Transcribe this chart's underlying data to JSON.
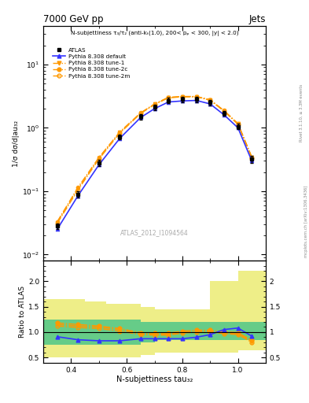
{
  "title_left": "7000 GeV pp",
  "title_right": "Jets",
  "annotation": "N-subjettiness τ₃/τ₂ (anti-kₜ(1.0), 200< pₚ < 300, |y| < 2.0)",
  "watermark": "ATLAS_2012_I1094564",
  "right_label": "mcplots.cern.ch [arXiv:1306.3436]",
  "right_label2": "Rivet 3.1.10, ≥ 3.3M events",
  "ylabel_main": "1/σ dσ/d|au₃₂",
  "ylabel_ratio": "Ratio to ATLAS",
  "xlabel": "N-subjettiness tau₃₂",
  "xlim": [
    0.3,
    1.1
  ],
  "ylim_main": [
    0.008,
    40
  ],
  "ylim_ratio": [
    0.4,
    2.4
  ],
  "x_centers": [
    0.35,
    0.425,
    0.5,
    0.575,
    0.65,
    0.7,
    0.75,
    0.8,
    0.85,
    0.9,
    0.95,
    1.0,
    1.05
  ],
  "atlas_y": [
    0.028,
    0.09,
    0.28,
    0.72,
    1.5,
    2.1,
    2.7,
    2.8,
    2.8,
    2.5,
    1.7,
    1.05,
    0.32
  ],
  "atlas_yerr_lo": [
    0.003,
    0.01,
    0.03,
    0.07,
    0.15,
    0.2,
    0.25,
    0.25,
    0.25,
    0.23,
    0.16,
    0.1,
    0.04
  ],
  "atlas_yerr_hi": [
    0.003,
    0.01,
    0.03,
    0.07,
    0.15,
    0.2,
    0.25,
    0.25,
    0.25,
    0.23,
    0.16,
    0.1,
    0.04
  ],
  "pythia_default_y": [
    0.025,
    0.085,
    0.26,
    0.68,
    1.45,
    2.0,
    2.55,
    2.65,
    2.7,
    2.38,
    1.6,
    1.0,
    0.3
  ],
  "pythia_tune1_y": [
    0.032,
    0.11,
    0.33,
    0.84,
    1.7,
    2.35,
    3.0,
    3.1,
    3.1,
    2.75,
    1.85,
    1.15,
    0.34
  ],
  "pythia_tune2c_y": [
    0.033,
    0.115,
    0.34,
    0.86,
    1.72,
    2.38,
    3.02,
    3.12,
    3.12,
    2.77,
    1.87,
    1.17,
    0.345
  ],
  "pythia_tune2m_y": [
    0.031,
    0.105,
    0.32,
    0.82,
    1.68,
    2.32,
    2.97,
    3.07,
    3.07,
    2.72,
    1.83,
    1.13,
    0.335
  ],
  "ratio_default": [
    0.91,
    0.85,
    0.83,
    0.83,
    0.87,
    0.87,
    0.87,
    0.87,
    0.9,
    0.95,
    1.05,
    1.08,
    0.92
  ],
  "ratio_tune1": [
    1.15,
    1.12,
    1.1,
    1.05,
    0.97,
    0.96,
    0.96,
    1.0,
    1.02,
    1.02,
    0.99,
    0.97,
    0.82
  ],
  "ratio_tune2c": [
    1.18,
    1.15,
    1.12,
    1.07,
    0.99,
    0.98,
    0.98,
    1.02,
    1.04,
    1.04,
    1.01,
    0.99,
    0.84
  ],
  "ratio_tune2m": [
    1.12,
    1.09,
    1.07,
    1.02,
    0.95,
    0.94,
    0.94,
    0.98,
    1.0,
    1.0,
    0.97,
    0.95,
    0.8
  ],
  "band_x_lo": [
    0.3,
    0.375,
    0.45,
    0.525,
    0.6,
    0.65,
    0.7,
    0.75,
    0.8,
    0.9,
    1.0
  ],
  "band_x_hi": [
    0.375,
    0.45,
    0.525,
    0.6,
    0.65,
    0.7,
    0.75,
    0.8,
    0.9,
    1.0,
    1.1
  ],
  "band_green_lo": [
    0.75,
    0.75,
    0.75,
    0.75,
    0.75,
    0.8,
    0.85,
    0.85,
    0.85,
    0.85,
    0.85
  ],
  "band_green_hi": [
    1.25,
    1.25,
    1.25,
    1.25,
    1.25,
    1.2,
    1.2,
    1.2,
    1.2,
    1.2,
    1.2
  ],
  "band_yellow_lo": [
    0.5,
    0.5,
    0.5,
    0.5,
    0.5,
    0.55,
    0.6,
    0.6,
    0.6,
    0.6,
    0.65
  ],
  "band_yellow_hi": [
    1.65,
    1.65,
    1.6,
    1.55,
    1.55,
    1.5,
    1.45,
    1.45,
    1.45,
    2.0,
    2.2
  ],
  "color_atlas": "#000000",
  "color_default": "#3333ff",
  "color_tunes": "#ff9900",
  "color_green": "#66cc88",
  "color_yellow": "#eeee88",
  "bg_color": "#ffffff"
}
